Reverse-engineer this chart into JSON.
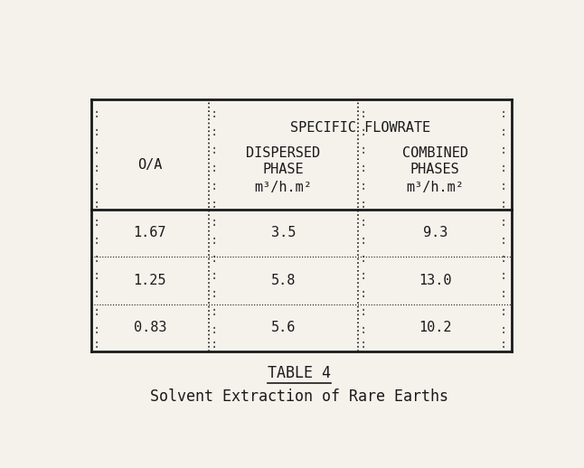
{
  "title": "TABLE 4",
  "subtitle": "Solvent Extraction of Rare Earths",
  "col1_header": "O/A",
  "specific_flowrate_label": "SPECIFIC FLOWRATE",
  "col2_header_line1": "DISPERSED",
  "col2_header_line2": "PHASE",
  "col2_header_line3": "m³/h.m²",
  "col3_header_line1": "COMBINED",
  "col3_header_line2": "PHASES",
  "col3_header_line3": "m³/h.m²",
  "rows": [
    [
      "1.67",
      "3.5",
      "9.3"
    ],
    [
      "1.25",
      "5.8",
      "13.0"
    ],
    [
      "0.83",
      "5.6",
      "10.2"
    ]
  ],
  "bg_color": "#f5f2ec",
  "text_color": "#1a1a1a",
  "font_family": "monospace",
  "font_size": 11,
  "title_font_size": 12
}
